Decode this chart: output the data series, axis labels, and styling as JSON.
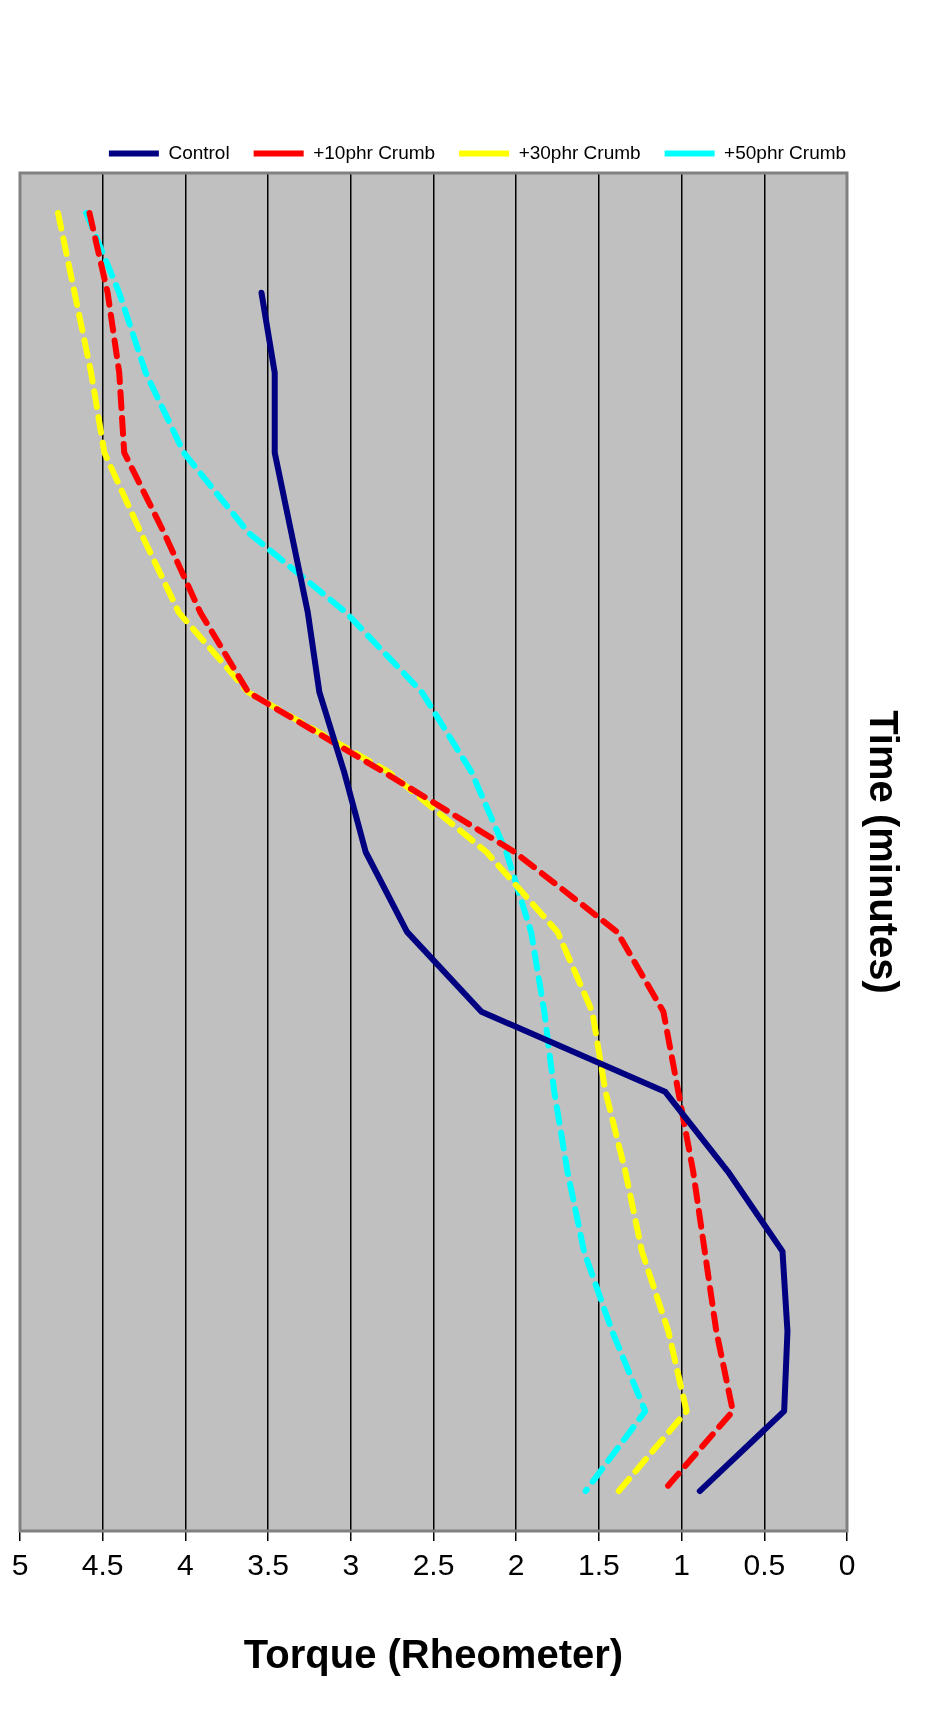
{
  "chart_data": {
    "type": "line",
    "orientation": "horizontal",
    "xlabel": "Torque (Rheometer)",
    "ylabel": "Time (minutes)",
    "categories": [
      null,
      null,
      null,
      null,
      null,
      null,
      null,
      null,
      null,
      null,
      null,
      null,
      null,
      null,
      null,
      null,
      null
    ],
    "series": [
      {
        "name": "Control",
        "color": "#000080",
        "line_style": "solid",
        "values": [
          null,
          3.54,
          3.46,
          3.46,
          3.36,
          3.26,
          3.19,
          3.04,
          2.91,
          2.66,
          2.21,
          1.1,
          0.72,
          0.39,
          0.36,
          0.38,
          0.89
        ]
      },
      {
        "name": "+10phr Crumb",
        "color": "#ff0000",
        "line_style": "dashed",
        "values": [
          4.58,
          4.47,
          4.4,
          4.37,
          4.13,
          3.91,
          3.62,
          2.8,
          2.01,
          1.39,
          1.11,
          1.02,
          0.93,
          0.86,
          0.79,
          0.69,
          1.11
        ]
      },
      {
        "name": "+30phr Crumb",
        "color": "#ffff00",
        "line_style": "dashed",
        "values": [
          4.77,
          4.67,
          4.57,
          4.49,
          4.27,
          4.04,
          3.62,
          2.77,
          2.18,
          1.75,
          1.54,
          1.46,
          1.34,
          1.24,
          1.08,
          0.97,
          1.38
        ]
      },
      {
        "name": "+50phr Crumb",
        "color": "#00ffff",
        "line_style": "dashed",
        "values": [
          4.6,
          4.4,
          4.24,
          4.01,
          3.62,
          3.03,
          2.57,
          2.27,
          2.06,
          1.91,
          1.83,
          1.77,
          1.69,
          1.59,
          1.42,
          1.22,
          1.58
        ]
      }
    ],
    "xlim": [
      5,
      0
    ],
    "xticks": [
      5,
      4.5,
      4,
      3.5,
      3,
      2.5,
      2,
      1.5,
      1,
      0.5,
      0
    ],
    "grid": "x",
    "legend": "top",
    "marker": "none",
    "tick_labels": "x"
  }
}
